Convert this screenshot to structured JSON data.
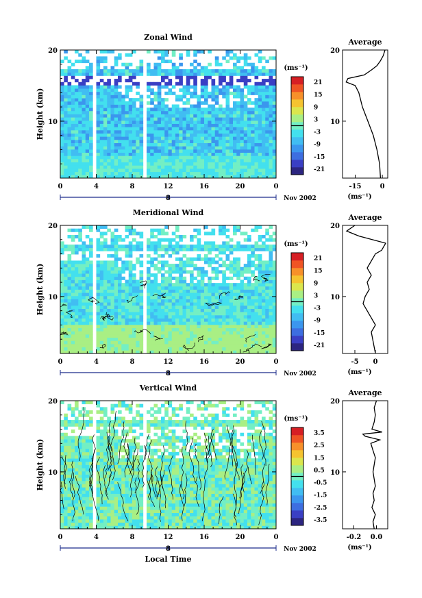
{
  "chart_data": [
    {
      "type": "heatmap",
      "title": "Zonal Wind",
      "ylabel": "Height (km)",
      "xticks": [
        "0",
        "4",
        "8",
        "12",
        "16",
        "20",
        "0"
      ],
      "xlim": [
        0,
        24
      ],
      "yticks": [
        "10",
        "20"
      ],
      "ylim": [
        2,
        20
      ],
      "date_label": "Nov 2002",
      "day_marker": "8",
      "colorbar": {
        "unit": "(ms⁻¹)",
        "ticks": [
          "21",
          "15",
          "9",
          "3",
          "-3",
          "-9",
          "-15",
          "-21"
        ],
        "range": [
          -24,
          24
        ]
      },
      "profile": {
        "title": "Average",
        "yticks": [
          "10",
          "20"
        ],
        "xticks": [
          "-15",
          "0"
        ],
        "xlim": [
          -22,
          3
        ],
        "unit": "(ms⁻¹)",
        "points": [
          [
            -1,
            2
          ],
          [
            -1.5,
            4
          ],
          [
            -3,
            6
          ],
          [
            -5,
            8
          ],
          [
            -8,
            10
          ],
          [
            -11,
            12
          ],
          [
            -13,
            14
          ],
          [
            -15,
            15
          ],
          [
            -20,
            15.5
          ],
          [
            -19,
            16
          ],
          [
            -10,
            16.5
          ],
          [
            -6,
            17.2
          ],
          [
            -3,
            17.8
          ],
          [
            -1,
            18.5
          ],
          [
            0.5,
            19.2
          ],
          [
            1.5,
            20
          ]
        ]
      },
      "field": {
        "description_free": true,
        "mean": -6,
        "spread": 5
      }
    },
    {
      "type": "heatmap",
      "title": "Meridional Wind",
      "ylabel": "Height (km)",
      "xticks": [
        "0",
        "4",
        "8",
        "12",
        "16",
        "20",
        "0"
      ],
      "xlim": [
        0,
        24
      ],
      "yticks": [
        "10",
        "20"
      ],
      "ylim": [
        2,
        20
      ],
      "date_label": "Nov 2002",
      "day_marker": "8",
      "colorbar": {
        "unit": "(ms⁻¹)",
        "ticks": [
          "21",
          "15",
          "9",
          "3",
          "-3",
          "-9",
          "-15",
          "-21"
        ],
        "range": [
          -24,
          24
        ]
      },
      "profile": {
        "title": "Average",
        "yticks": [
          "10",
          "20"
        ],
        "xticks": [
          "-5",
          "0"
        ],
        "xlim": [
          -8,
          3
        ],
        "unit": "(ms⁻¹)",
        "points": [
          [
            0,
            2
          ],
          [
            -0.5,
            3.5
          ],
          [
            -1,
            5
          ],
          [
            0,
            6
          ],
          [
            -1,
            7
          ],
          [
            -2,
            8
          ],
          [
            -3,
            9
          ],
          [
            -2.5,
            10
          ],
          [
            -1.5,
            11
          ],
          [
            -2,
            12
          ],
          [
            -1,
            13
          ],
          [
            -2,
            14
          ],
          [
            -1,
            15
          ],
          [
            0,
            16
          ],
          [
            1.5,
            16.5
          ],
          [
            2.5,
            17.5
          ],
          [
            -4,
            18.5
          ],
          [
            -7,
            19.2
          ],
          [
            -5,
            20
          ]
        ]
      },
      "field": {
        "description_free": true,
        "mean": -3,
        "spread": 4
      }
    },
    {
      "type": "heatmap",
      "title": "Vertical Wind",
      "ylabel": "Height (km)",
      "xlabel": "Local Time",
      "xticks": [
        "0",
        "4",
        "8",
        "12",
        "16",
        "20",
        "0"
      ],
      "xlim": [
        0,
        24
      ],
      "yticks": [
        "10",
        "20"
      ],
      "ylim": [
        2,
        20
      ],
      "date_label": "Nov 2002",
      "day_marker": "8",
      "colorbar": {
        "unit": "(ms⁻¹)",
        "ticks": [
          "3.5",
          "2.5",
          "1.5",
          "0.5",
          "-0.5",
          "-1.5",
          "-2.5",
          "-3.5"
        ],
        "range": [
          -4,
          4
        ]
      },
      "profile": {
        "title": "Average",
        "yticks": [
          "10",
          "20"
        ],
        "xticks": [
          "-0.2",
          "0.0"
        ],
        "xlim": [
          -0.3,
          0.1
        ],
        "unit": "(ms⁻¹)",
        "points": [
          [
            -0.02,
            2
          ],
          [
            -0.03,
            3
          ],
          [
            -0.01,
            4
          ],
          [
            -0.04,
            5
          ],
          [
            -0.02,
            6
          ],
          [
            -0.03,
            7
          ],
          [
            -0.01,
            8
          ],
          [
            -0.02,
            9
          ],
          [
            -0.03,
            10
          ],
          [
            -0.02,
            11
          ],
          [
            -0.01,
            12
          ],
          [
            -0.03,
            13
          ],
          [
            -0.05,
            14
          ],
          [
            0.03,
            14.5
          ],
          [
            -0.1,
            15
          ],
          [
            -0.12,
            15.3
          ],
          [
            0.05,
            15.6
          ],
          [
            -0.04,
            16
          ],
          [
            -0.02,
            17
          ],
          [
            -0.01,
            18
          ],
          [
            -0.02,
            19
          ],
          [
            0,
            20
          ]
        ]
      },
      "field": {
        "description_free": true,
        "mean": 0,
        "spread": 0.8
      }
    }
  ]
}
